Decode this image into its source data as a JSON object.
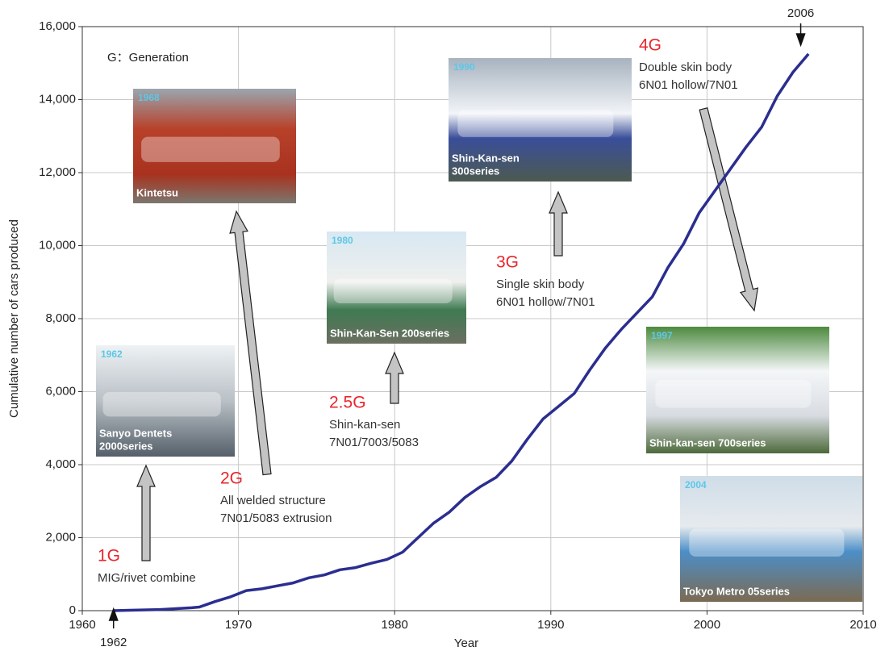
{
  "chart_data": {
    "type": "line",
    "x_label": "Year",
    "y_label": "Cumulative number of cars produced",
    "x": [
      1962,
      1963,
      1965,
      1967,
      1967.5,
      1968.5,
      1969.5,
      1970.5,
      1971.5,
      1972.5,
      1973.5,
      1974.5,
      1975.5,
      1976.5,
      1977.5,
      1978.5,
      1979.5,
      1980.5,
      1981.5,
      1982.5,
      1983.5,
      1984.5,
      1985.5,
      1986.5,
      1987.5,
      1988.5,
      1989.5,
      1990.5,
      1991.5,
      1992.5,
      1993.5,
      1994.5,
      1995.5,
      1996.5,
      1997.5,
      1998.5,
      1999.5,
      2000.5,
      2001.5,
      2002.5,
      2003.5,
      2004.5,
      2005.5,
      2006.5
    ],
    "series": [
      {
        "color": "#2b2e8f",
        "values": [
          0,
          10,
          30,
          80,
          100,
          250,
          380,
          550,
          600,
          680,
          760,
          900,
          980,
          1120,
          1180,
          1300,
          1400,
          1600,
          2000,
          2400,
          2700,
          3100,
          3400,
          3650,
          4100,
          4700,
          5250,
          5600,
          5950,
          6600,
          7200,
          7700,
          8150,
          8600,
          9400,
          10050,
          10900,
          11500,
          12100,
          12700,
          13250,
          14100,
          14750,
          15250
        ]
      }
    ],
    "xlim": [
      1960,
      2010
    ],
    "xticks": [
      1960,
      1970,
      1980,
      1990,
      2000,
      2010
    ],
    "ylim": [
      0,
      16000
    ],
    "yticks": [
      0,
      {
        "value": 2000,
        "label": "2,000"
      },
      {
        "value": 4000,
        "label": "4,000"
      },
      {
        "value": 6000,
        "label": "6,000"
      },
      {
        "value": 8000,
        "label": "8,000"
      },
      {
        "value": 10000,
        "label": "10,000"
      },
      {
        "value": 12000,
        "label": "12,000"
      },
      {
        "value": 14000,
        "label": "14,000"
      },
      {
        "value": 16000,
        "label": "16,000"
      }
    ],
    "grid": true,
    "markers": [
      1962,
      2006
    ],
    "legend_note": "G：Generation",
    "generations": [
      {
        "label": "1G",
        "lines": [
          "MIG/rivet combine"
        ]
      },
      {
        "label": "2G",
        "lines": [
          "All welded structure",
          "7N01/5083 extrusion"
        ]
      },
      {
        "label": "2.5G",
        "lines": [
          "Shin-kan-sen",
          "7N01/7003/5083"
        ]
      },
      {
        "label": "3G",
        "lines": [
          "Single skin body",
          "6N01 hollow/7N01"
        ]
      },
      {
        "label": "4G",
        "lines": [
          "Double skin body",
          "6N01 hollow/7N01"
        ]
      }
    ],
    "photos": [
      {
        "year": "1962",
        "caption": [
          "Sanyo Dentets",
          "2000series"
        ]
      },
      {
        "year": "1968",
        "caption": [
          "Kintetsu"
        ]
      },
      {
        "year": "1980",
        "caption": [
          "Shin-Kan-Sen 200series"
        ]
      },
      {
        "year": "1990",
        "caption": [
          "Shin-Kan-sen",
          "300series"
        ]
      },
      {
        "year": "1997",
        "caption": [
          "Shin-kan-sen 700series"
        ]
      },
      {
        "year": "2004",
        "caption": [
          "Tokyo Metro 05series"
        ]
      }
    ]
  }
}
